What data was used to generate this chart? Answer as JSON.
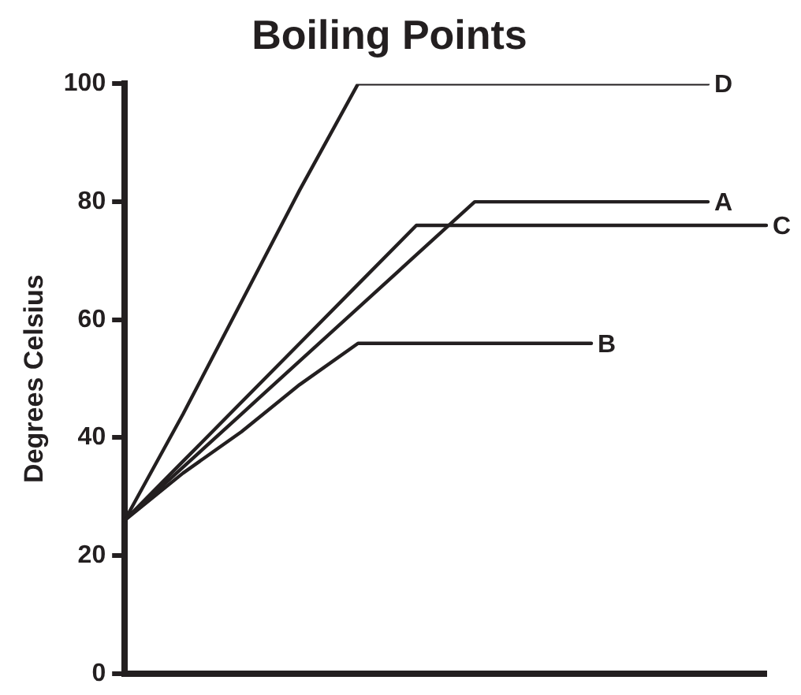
{
  "chart_data": {
    "type": "line",
    "title": "Boiling Points",
    "ylabel": "Degrees Celsius",
    "categories": [
      null,
      null,
      null,
      null,
      null,
      null,
      null,
      null,
      null,
      null,
      null,
      null
    ],
    "ylim": [
      0,
      100
    ],
    "yticks": [
      0,
      20,
      40,
      60,
      80,
      100
    ],
    "grid": false,
    "legend": false,
    "marker": "none",
    "line_style": "solid",
    "series": [
      {
        "name": "A",
        "color": "#231f20",
        "values": [
          26,
          35,
          44,
          53,
          62,
          71,
          80,
          80,
          80,
          80,
          80,
          null
        ]
      },
      {
        "name": "B",
        "color": "#231f20",
        "values": [
          26,
          34,
          41,
          49,
          56,
          56,
          56,
          56,
          56,
          null,
          null,
          null
        ]
      },
      {
        "name": "C",
        "color": "#231f20",
        "values": [
          26,
          36,
          46,
          56,
          66,
          76,
          76,
          76,
          76,
          76,
          76,
          76
        ]
      },
      {
        "name": "D",
        "color": "#231f20",
        "values": [
          26,
          44,
          63,
          82,
          100,
          100,
          100,
          100,
          100,
          100,
          100,
          null
        ]
      }
    ]
  }
}
